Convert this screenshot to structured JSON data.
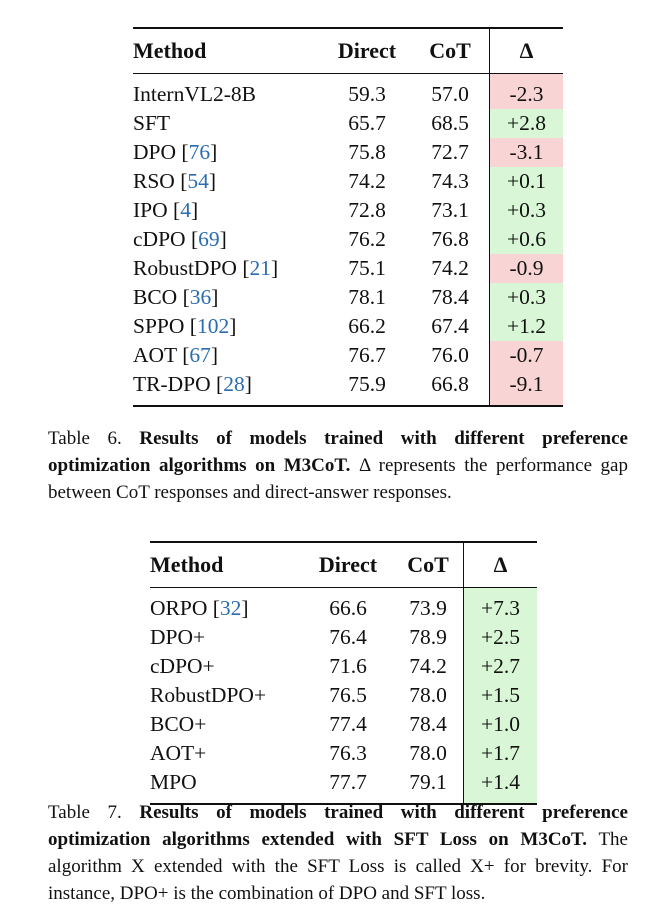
{
  "table6": {
    "headers": {
      "method": "Method",
      "direct": "Direct",
      "cot": "CoT",
      "delta": "Δ"
    },
    "rows": [
      {
        "method": "InternVL2-8B",
        "cite": "",
        "direct": "59.3",
        "cot": "57.0",
        "delta": "-2.3",
        "sign": "neg"
      },
      {
        "method": "SFT",
        "cite": "",
        "direct": "65.7",
        "cot": "68.5",
        "delta": "+2.8",
        "sign": "pos"
      },
      {
        "method": "DPO",
        "cite": "76",
        "direct": "75.8",
        "cot": "72.7",
        "delta": "-3.1",
        "sign": "neg"
      },
      {
        "method": "RSO",
        "cite": "54",
        "direct": "74.2",
        "cot": "74.3",
        "delta": "+0.1",
        "sign": "pos"
      },
      {
        "method": "IPO",
        "cite": "4",
        "direct": "72.8",
        "cot": "73.1",
        "delta": "+0.3",
        "sign": "pos"
      },
      {
        "method": "cDPO",
        "cite": "69",
        "direct": "76.2",
        "cot": "76.8",
        "delta": "+0.6",
        "sign": "pos"
      },
      {
        "method": "RobustDPO",
        "cite": "21",
        "direct": "75.1",
        "cot": "74.2",
        "delta": "-0.9",
        "sign": "neg"
      },
      {
        "method": "BCO",
        "cite": "36",
        "direct": "78.1",
        "cot": "78.4",
        "delta": "+0.3",
        "sign": "pos"
      },
      {
        "method": "SPPO",
        "cite": "102",
        "direct": "66.2",
        "cot": "67.4",
        "delta": "+1.2",
        "sign": "pos"
      },
      {
        "method": "AOT",
        "cite": "67",
        "direct": "76.7",
        "cot": "76.0",
        "delta": "-0.7",
        "sign": "neg"
      },
      {
        "method": "TR-DPO",
        "cite": "28",
        "direct": "75.9",
        "cot": "66.8",
        "delta": "-9.1",
        "sign": "neg"
      }
    ],
    "caption": {
      "label": "Table 6. ",
      "bold": "Results of models trained with different preference optimization algorithms on M3CoT.",
      "rest": " Δ represents the performance gap between CoT responses and direct-answer responses."
    }
  },
  "table7": {
    "headers": {
      "method": "Method",
      "direct": "Direct",
      "cot": "CoT",
      "delta": "Δ"
    },
    "rows": [
      {
        "method": "ORPO",
        "cite": "32",
        "direct": "66.6",
        "cot": "73.9",
        "delta": "+7.3",
        "sign": "pos"
      },
      {
        "method": "DPO+",
        "cite": "",
        "direct": "76.4",
        "cot": "78.9",
        "delta": "+2.5",
        "sign": "pos"
      },
      {
        "method": "cDPO+",
        "cite": "",
        "direct": "71.6",
        "cot": "74.2",
        "delta": "+2.7",
        "sign": "pos"
      },
      {
        "method": "RobustDPO+",
        "cite": "",
        "direct": "76.5",
        "cot": "78.0",
        "delta": "+1.5",
        "sign": "pos"
      },
      {
        "method": "BCO+",
        "cite": "",
        "direct": "77.4",
        "cot": "78.4",
        "delta": "+1.0",
        "sign": "pos"
      },
      {
        "method": "AOT+",
        "cite": "",
        "direct": "76.3",
        "cot": "78.0",
        "delta": "+1.7",
        "sign": "pos"
      },
      {
        "method": "MPO",
        "cite": "",
        "direct": "77.7",
        "cot": "79.1",
        "delta": "+1.4",
        "sign": "pos"
      }
    ],
    "caption": {
      "label": "Table 7. ",
      "bold": "Results of models trained with different preference optimization algorithms extended with SFT Loss on M3CoT.",
      "rest": " The algorithm X extended with the SFT Loss is called X+ for brevity. For instance, DPO+ is the combination of DPO and SFT loss."
    }
  },
  "colors": {
    "positive": "#d9f7d6",
    "negative": "#f9d4d4",
    "citation": "#2a6cb0"
  }
}
